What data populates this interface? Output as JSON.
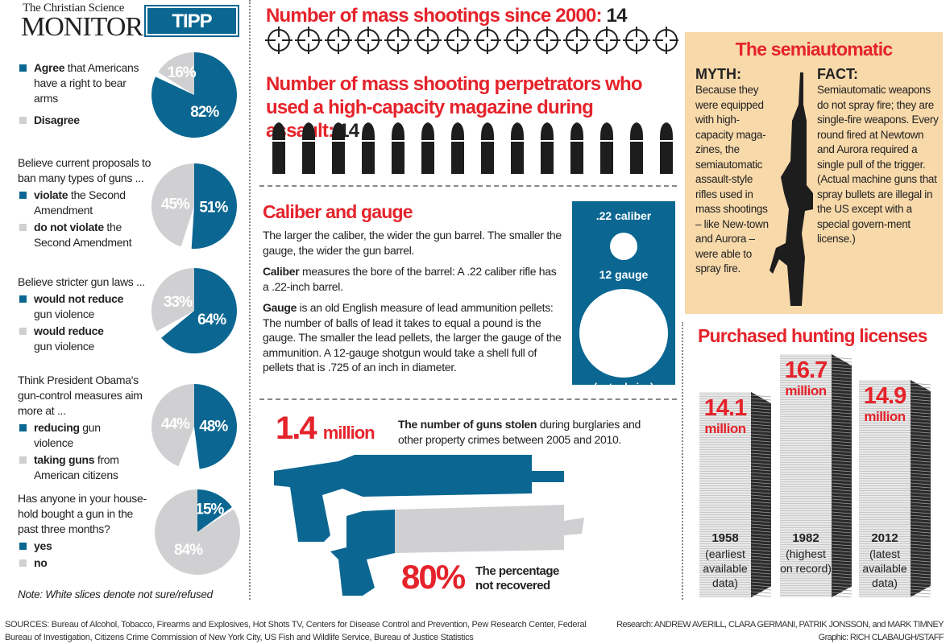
{
  "header": {
    "publication_small": "The Christian Science",
    "publication_big": "Monitor",
    "poll_badge": "TIPP POLL"
  },
  "colors": {
    "blue": "#0b6792",
    "gray": "#d0d0d2",
    "red": "#e5232b",
    "beige": "#f8d9aa"
  },
  "chart_data": [
    {
      "type": "pie",
      "question": "",
      "slices": [
        {
          "bold": "Agree",
          "rest": " that Americans have a right to bear arms",
          "value": 82,
          "color": "#0b6792"
        },
        {
          "bold": "Disagree",
          "rest": "",
          "value": 16,
          "color": "#d0d0d2"
        }
      ]
    },
    {
      "type": "pie",
      "question": "Believe current proposals to ban many types of guns ...",
      "slices": [
        {
          "bold": "violate",
          "rest": " the Second Amendment",
          "value": 51,
          "color": "#0b6792"
        },
        {
          "bold": "do not violate",
          "rest": " the Second Amendment",
          "value": 45,
          "color": "#d0d0d2"
        }
      ]
    },
    {
      "type": "pie",
      "question": "Believe stricter gun laws ...",
      "slices": [
        {
          "bold": "would not reduce",
          "rest": " gun violence",
          "value": 64,
          "color": "#0b6792"
        },
        {
          "bold": "would reduce",
          "rest": " gun violence",
          "value": 33,
          "color": "#d0d0d2"
        }
      ]
    },
    {
      "type": "pie",
      "question": "Think President Obama's gun-control measures aim more at ...",
      "slices": [
        {
          "bold": "reducing",
          "rest": " gun violence",
          "value": 48,
          "color": "#0b6792"
        },
        {
          "bold": "taking guns",
          "rest": " from American citizens",
          "value": 44,
          "color": "#d0d0d2"
        }
      ]
    },
    {
      "type": "pie",
      "question": "Has anyone in your house-hold bought a gun in the past three months?",
      "slices": [
        {
          "bold": "yes",
          "rest": "",
          "value": 15,
          "color": "#0b6792"
        },
        {
          "bold": "no",
          "rest": "",
          "value": 84,
          "color": "#d0d0d2"
        }
      ]
    },
    {
      "type": "bar",
      "title": "Purchased hunting licenses",
      "unit": "million",
      "categories": [
        "1958",
        "1982",
        "2012"
      ],
      "notes": [
        "(earliest available data)",
        "(highest on record)",
        "(latest available data)"
      ],
      "values": [
        14.1,
        16.7,
        14.9
      ],
      "value_labels": [
        "14.1",
        "16.7",
        "14.9"
      ]
    }
  ],
  "poll_note": "Note: White slices denote not sure/refused",
  "mass_shootings": {
    "label": "Number of mass shootings since 2000:",
    "value": "14",
    "count": 14
  },
  "high_capacity": {
    "label": "Number of mass shooting perpetrators who used a high-capacity magazine during assault:",
    "value": "14",
    "count": 14
  },
  "caliber": {
    "title": "Caliber and gauge",
    "intro": "The larger the caliber, the wider the gun barrel. The smaller the gauge, the wider the gun barrel.",
    "p1_bold": "Caliber",
    "p1_rest": " measures the bore of the barrel: A .22 caliber rifle has a .22-inch barrel.",
    "p2_bold": "Gauge",
    "p2_rest": " is an old English measure of lead ammunition pellets: The number of balls of lead it takes to equal a pound is the gauge. The smaller the lead pellets, the larger the gauge of the ammunition. A 12-gauge shotgun would take a shell full of pellets that is .725 of an inch in diameter.",
    "box_caliber": ".22 caliber",
    "box_gauge": "12 gauge",
    "box_note": "(actual size)"
  },
  "stolen": {
    "value": "1.4",
    "unit": "million",
    "bold": "The number of guns stolen",
    "rest": " during burglaries and other property crimes between 2005 and 2010."
  },
  "recovered": {
    "value": "80%",
    "text": "The percentage not recovered",
    "fraction_not_recovered": 0.8
  },
  "semiauto": {
    "title": "The semiautomatic",
    "myth_label": "MYTH:",
    "myth": "Because they were equipped with high-capacity maga-zines, the semiautomatic assault-style rifles used in mass shootings – like New-town and Aurora – were able to spray fire.",
    "fact_label": "FACT:",
    "fact": "Semiautomatic weapons do not spray fire; they are single-fire weapons. Every round fired at Newtown and Aurora required a single pull of the trigger. (Actual machine guns that spray bullets are illegal in the US except with a special govern-ment license.)"
  },
  "footer": {
    "sources": "SOURCES:  Bureau of Alcohol, Tobacco, Firearms and Explosives, Hot Shots TV, Centers for Disease Control and Prevention, Pew Research Center, Federal Bureau of Investigation, Citizens Crime Commission of New York City, US Fish and Wildlife Service, Bureau of Justice Statistics",
    "research": "Research: ANDREW AVERILL, CLARA GERMANI, PATRIK JONSSON, and MARK TIMNEY",
    "graphic": "Graphic: RICH CLABAUGH/STAFF"
  }
}
